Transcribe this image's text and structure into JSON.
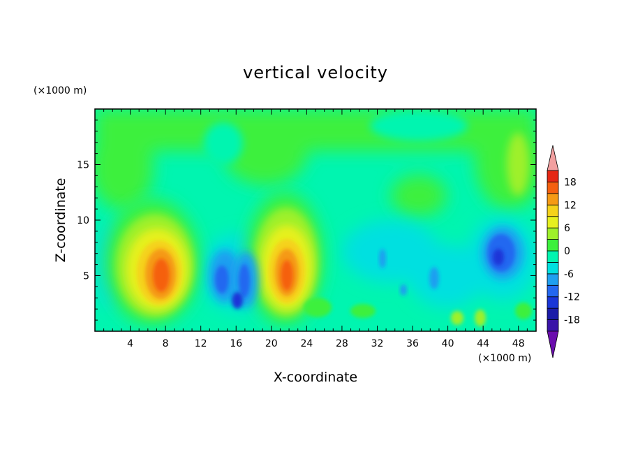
{
  "chart_data": {
    "type": "heatmap",
    "title": "vertical velocity",
    "xlabel": "X-coordinate",
    "ylabel": "Z-coordinate",
    "x_unit": "(×1000 m)",
    "y_unit": "(×1000 m)",
    "xlim": [
      0,
      50
    ],
    "ylim": [
      0,
      20
    ],
    "x_ticks": [
      "4",
      "8",
      "12",
      "16",
      "20",
      "24",
      "28",
      "32",
      "36",
      "40",
      "44",
      "48"
    ],
    "x_tick_values": [
      4,
      8,
      12,
      16,
      20,
      24,
      28,
      32,
      36,
      40,
      44,
      48
    ],
    "y_ticks": [
      "5",
      "10",
      "15"
    ],
    "y_tick_values": [
      5,
      10,
      15
    ],
    "colorbar": {
      "levels": [
        -21,
        -18,
        -15,
        -12,
        -9,
        -6,
        -3,
        0,
        3,
        6,
        9,
        12,
        15,
        18,
        21
      ],
      "labels": [
        "18",
        "12",
        "6",
        "0",
        "-6",
        "-12",
        "-18"
      ],
      "label_values": [
        18,
        12,
        6,
        0,
        -6,
        -12,
        -18
      ],
      "colors": [
        "#6a0dad",
        "#3a14a8",
        "#1b1ba8",
        "#1a36d8",
        "#2468f0",
        "#1f9ff0",
        "#00e0e0",
        "#00f5b0",
        "#3cf03c",
        "#9ef02a",
        "#e6f01e",
        "#f5d21a",
        "#f59a14",
        "#f5600f",
        "#e62814",
        "#f2a0a0"
      ],
      "extend": "both"
    },
    "features": [
      {
        "x": 7.5,
        "z": 5.0,
        "peak": 16
      },
      {
        "x": 21.5,
        "z": 5.0,
        "peak": 16
      },
      {
        "x": 14.5,
        "z": 4.5,
        "peak": -11
      },
      {
        "x": 17.0,
        "z": 4.5,
        "peak": -9
      },
      {
        "x": 46.0,
        "z": 6.5,
        "peak": -12
      },
      {
        "x": 39.0,
        "z": 4.0,
        "peak": -7
      }
    ]
  }
}
